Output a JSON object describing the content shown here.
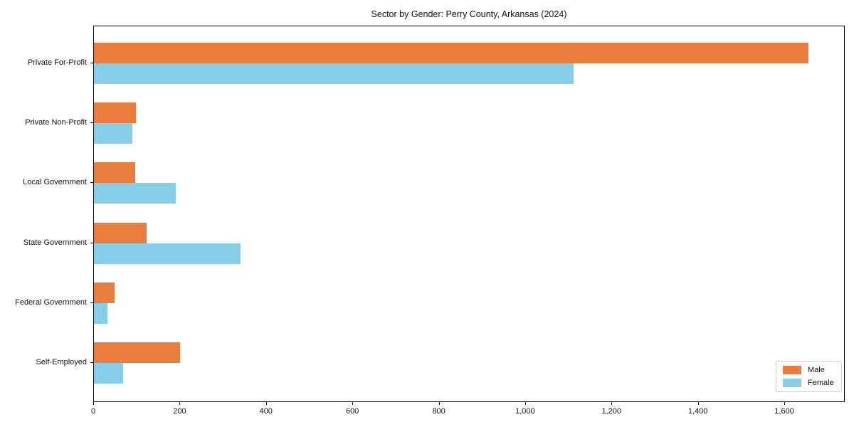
{
  "chart_data": {
    "type": "bar",
    "orientation": "horizontal",
    "title": "Sector by Gender: Perry County, Arkansas (2024)",
    "categories": [
      "Private For-Profit",
      "Private Non-Profit",
      "Local Government",
      "State Government",
      "Federal Government",
      "Self-Employed"
    ],
    "series": [
      {
        "name": "Male",
        "color": "#e87d3c",
        "values": [
          1655,
          97,
          95,
          122,
          48,
          200
        ]
      },
      {
        "name": "Female",
        "color": "#87ceeb",
        "values": [
          1110,
          89,
          190,
          340,
          31,
          67
        ]
      }
    ],
    "xlim": [
      0,
      1740
    ],
    "xticks": [
      0,
      200,
      400,
      600,
      800,
      1000,
      1200,
      1400,
      1600
    ],
    "xtick_labels": [
      "0",
      "200",
      "400",
      "600",
      "800",
      "1,000",
      "1,200",
      "1,400",
      "1,600"
    ],
    "grid": false,
    "legend_position": "lower right",
    "xlabel": "",
    "ylabel": ""
  }
}
